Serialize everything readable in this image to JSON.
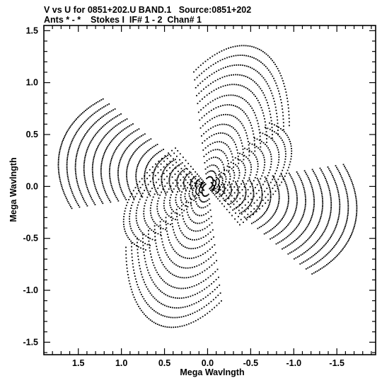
{
  "header": {
    "line1": "V vs U for 0851+202.U BAND.1   Source:0851+202",
    "line2": "Ants * - *    Stokes I  IF# 1 - 2  Chan# 1"
  },
  "chart_data": {
    "type": "scatter",
    "title": "V vs U for 0851+202.U BAND.1   Source:0851+202",
    "subtitle": "Ants * - *    Stokes I  IF# 1 - 2  Chan# 1",
    "xlabel": "Mega Wavlngth",
    "ylabel": "Mega Wavlngth",
    "xlim": [
      1.9,
      -1.95
    ],
    "ylim": [
      -1.62,
      1.55
    ],
    "x_reversed": true,
    "x_ticks": [
      1.5,
      1.0,
      0.5,
      0.0,
      -0.5,
      -1.0,
      -1.5
    ],
    "x_tick_labels": [
      "1.5",
      "1.0",
      "0.5",
      "0.0",
      "-0.5",
      "-1.0",
      "-1.5"
    ],
    "y_ticks": [
      1.5,
      1.0,
      0.5,
      0.0,
      -0.5,
      -1.0,
      -1.5
    ],
    "y_tick_labels": [
      "1.5",
      "1.0",
      "0.5",
      "0.0",
      "-0.5",
      "-1.0",
      "-1.5"
    ],
    "grid": false,
    "marker": "dot",
    "marker_color": "#000000",
    "uv_tracks": {
      "description_free": true,
      "point_symmetric": true,
      "groups": [
        {
          "ellipse_semi_u": 1.05,
          "ellipse_semi_v": 0.5,
          "rotation_deg": -25,
          "radii": [
            0.06,
            0.1,
            0.14,
            0.18,
            0.22,
            0.27,
            0.32,
            0.38,
            0.45,
            0.52,
            0.6,
            0.68,
            0.76,
            0.85,
            0.93,
            1.0
          ],
          "arc_start_deg": 150,
          "arc_end_deg": 260
        },
        {
          "ellipse_semi_u": 0.55,
          "ellipse_semi_v": 1.0,
          "rotation_deg": 25,
          "radii": [
            0.1,
            0.16,
            0.22,
            0.3,
            0.38,
            0.46,
            0.55,
            0.64,
            0.74,
            0.84,
            0.94,
            1.05,
            1.15,
            1.25,
            1.35,
            1.45
          ],
          "arc_start_deg": 40,
          "arc_end_deg": 140
        },
        {
          "ellipse_semi_u": 1.0,
          "ellipse_semi_v": 0.55,
          "rotation_deg": 10,
          "radii": [
            0.08,
            0.14,
            0.2,
            0.28,
            0.36,
            0.45,
            0.54,
            0.64,
            0.74,
            0.84,
            0.95,
            1.05,
            1.15,
            1.25,
            1.35,
            1.45,
            1.55,
            1.65,
            1.75
          ],
          "arc_start_deg": -30,
          "arc_end_deg": 40
        }
      ]
    }
  }
}
